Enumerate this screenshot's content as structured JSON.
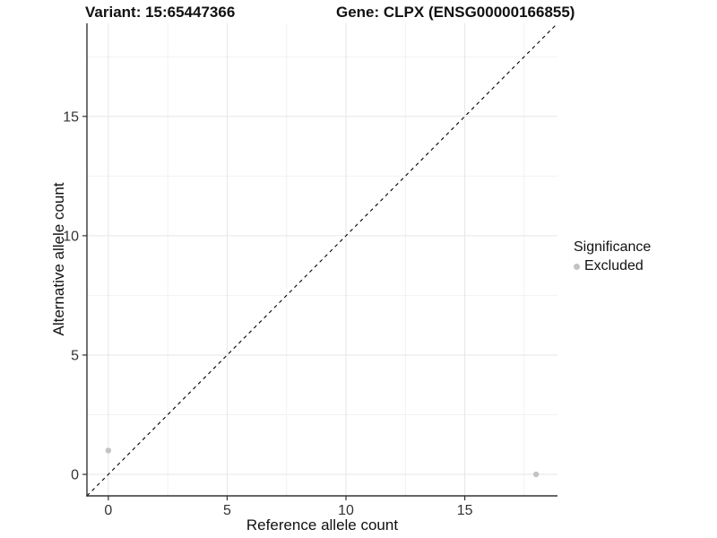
{
  "header": {
    "title_left": "Variant: 15:65447366",
    "title_right": "Gene: CLPX (ENSG00000166855)"
  },
  "axes": {
    "xlabel": "Reference allele count",
    "ylabel": "Alternative allele count"
  },
  "legend": {
    "title": "Significance",
    "items": [
      {
        "label": "Excluded",
        "color": "#c3c3c3"
      }
    ]
  },
  "colors": {
    "background": "#ffffff",
    "axis_line": "#333333",
    "tick_mark": "#333333",
    "tick_label": "#333333",
    "grid_major": "#e6e6e6",
    "grid_minor": "#f2f2f2",
    "identity_line": "#000000",
    "point": "#c3c3c3"
  },
  "chart_data": {
    "type": "scatter",
    "title": "Variant: 15:65447366  |  Gene: CLPX (ENSG00000166855)",
    "xlabel": "Reference allele count",
    "ylabel": "Alternative allele count",
    "xlim": [
      -0.9,
      18.9
    ],
    "ylim": [
      -0.9,
      18.9
    ],
    "xticks": [
      0,
      5,
      10,
      15
    ],
    "yticks": [
      0,
      5,
      10,
      15
    ],
    "xticks_minor": [
      2.5,
      7.5,
      12.5,
      17.5
    ],
    "yticks_minor": [
      2.5,
      7.5,
      12.5,
      17.5
    ],
    "grid": true,
    "legend_position": "right",
    "legend_title": "Significance",
    "series": [
      {
        "name": "Excluded",
        "color": "#c3c3c3",
        "marker": "circle",
        "points": [
          {
            "x": 0,
            "y": 1
          },
          {
            "x": 18,
            "y": 0
          }
        ]
      }
    ],
    "annotations": [
      {
        "type": "identity_line",
        "equation": "y = x",
        "style": "dashed",
        "color": "#000000"
      }
    ]
  }
}
